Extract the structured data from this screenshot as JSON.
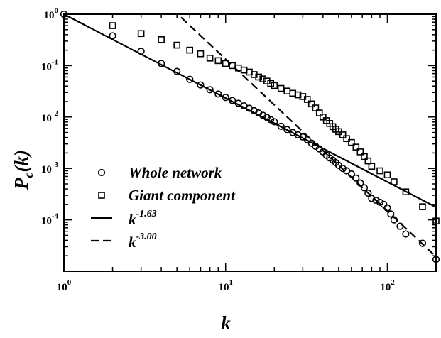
{
  "chart_data": {
    "type": "scatter",
    "x_scale": "log",
    "y_scale": "log",
    "xlim": [
      1,
      200
    ],
    "ylim": [
      1e-05,
      1
    ],
    "x_axis_label": {
      "main": "k"
    },
    "y_axis_label": {
      "main": "P",
      "sub": "c",
      "suffix": "(k)"
    },
    "x_ticks": [
      {
        "value": 1,
        "base": "10",
        "exp": "0"
      },
      {
        "value": 10,
        "base": "10",
        "exp": "1"
      },
      {
        "value": 100,
        "base": "10",
        "exp": "2"
      }
    ],
    "y_ticks": [
      {
        "value": 1,
        "base": "10",
        "exp": "0"
      },
      {
        "value": 0.1,
        "base": "10",
        "exp": "-1"
      },
      {
        "value": 0.01,
        "base": "10",
        "exp": "-2"
      },
      {
        "value": 0.001,
        "base": "10",
        "exp": "-3"
      },
      {
        "value": 0.0001,
        "base": "10",
        "exp": "-4"
      }
    ],
    "grid": false,
    "legend_position": "center-left",
    "series": [
      {
        "name": "Whole network",
        "marker": "circle",
        "x": [
          1,
          2,
          3,
          4,
          5,
          6,
          7,
          8,
          9,
          10,
          11,
          12,
          13,
          14,
          15,
          16,
          17,
          18,
          19,
          20,
          22,
          24,
          26,
          28,
          30,
          32,
          34,
          36,
          38,
          40,
          42,
          44,
          46,
          48,
          50,
          53,
          56,
          60,
          64,
          68,
          72,
          76,
          80,
          85,
          90,
          95,
          100,
          105,
          110,
          120,
          130,
          165,
          200
        ],
        "y": [
          1,
          0.38,
          0.19,
          0.11,
          0.077,
          0.054,
          0.042,
          0.034,
          0.028,
          0.024,
          0.021,
          0.0185,
          0.0165,
          0.0148,
          0.0133,
          0.012,
          0.0108,
          0.0098,
          0.0089,
          0.0081,
          0.0066,
          0.0057,
          0.005,
          0.0045,
          0.0041,
          0.0036,
          0.0031,
          0.0027,
          0.0024,
          0.0021,
          0.0018,
          0.0016,
          0.00145,
          0.0013,
          0.00115,
          0.001,
          0.0009,
          0.00078,
          0.00065,
          0.00052,
          0.00042,
          0.00033,
          0.00026,
          0.00024,
          0.00022,
          0.0002,
          0.00017,
          0.00013,
          0.0001,
          7.5e-05,
          5.3e-05,
          3.5e-05,
          1.7e-05
        ]
      },
      {
        "name": "Giant component",
        "marker": "square",
        "x": [
          2,
          3,
          4,
          5,
          6,
          7,
          8,
          9,
          10,
          11,
          12,
          13,
          14,
          15,
          16,
          17,
          18,
          19,
          20,
          22,
          24,
          26,
          28,
          30,
          32,
          34,
          36,
          38,
          40,
          42,
          44,
          46,
          48,
          50,
          53,
          56,
          60,
          64,
          68,
          72,
          76,
          80,
          90,
          100,
          110,
          130,
          165,
          200
        ],
        "y": [
          0.6,
          0.42,
          0.32,
          0.25,
          0.2,
          0.17,
          0.14,
          0.125,
          0.11,
          0.1,
          0.09,
          0.082,
          0.075,
          0.067,
          0.06,
          0.055,
          0.05,
          0.045,
          0.041,
          0.036,
          0.032,
          0.029,
          0.027,
          0.025,
          0.022,
          0.018,
          0.015,
          0.012,
          0.01,
          0.0085,
          0.0075,
          0.0065,
          0.0058,
          0.0052,
          0.0045,
          0.0038,
          0.0032,
          0.0026,
          0.0021,
          0.0017,
          0.0014,
          0.0011,
          0.0009,
          0.00075,
          0.00055,
          0.00035,
          0.00018,
          9.5e-05
        ]
      },
      {
        "name": "k^-1.63",
        "style": "solid",
        "base": "k",
        "exp": "-1.63",
        "x": [
          1,
          210
        ],
        "y": [
          1,
          0.000163
        ]
      },
      {
        "name": "k^-3.00",
        "style": "dashed",
        "base": "k",
        "exp": "-3.00",
        "x": [
          5.3,
          210
        ],
        "y": [
          0.87,
          1.66e-05
        ]
      }
    ]
  }
}
